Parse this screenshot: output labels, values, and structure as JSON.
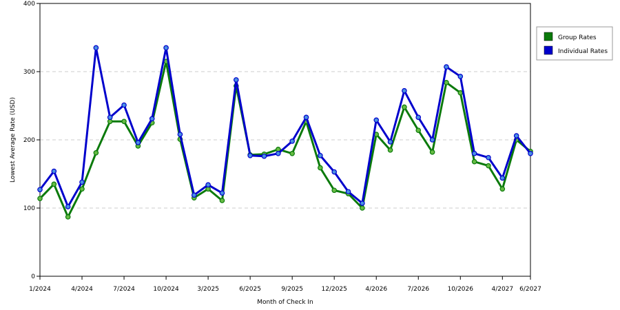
{
  "chart_data": {
    "type": "line",
    "xlabel": "Month of Check In",
    "ylabel": "Lowest Average Rate (USD)",
    "ylim": [
      0,
      400
    ],
    "yticks": [
      0,
      100,
      200,
      300,
      400
    ],
    "grid": "horizontal-dashed",
    "legend_position": "right",
    "x_tick_labels": [
      "1/2024",
      "4/2024",
      "7/2024",
      "10/2024",
      "3/2025",
      "6/2025",
      "9/2025",
      "12/2025",
      "4/2026",
      "7/2026",
      "10/2026",
      "4/2027",
      "6/2027"
    ],
    "x_tick_indices": [
      0,
      3,
      6,
      9,
      12,
      15,
      18,
      21,
      24,
      27,
      30,
      33,
      35
    ],
    "series": [
      {
        "name": "Group Rates",
        "color": "#0b7a0b",
        "marker_color": "#66bb44",
        "values": [
          114,
          135,
          87,
          128,
          181,
          227,
          227,
          191,
          225,
          315,
          201,
          115,
          128,
          111,
          279,
          178,
          179,
          186,
          180,
          227,
          159,
          126,
          121,
          100,
          208,
          185,
          248,
          214,
          182,
          284,
          269,
          168,
          162,
          128,
          200,
          183
        ]
      },
      {
        "name": "Individual Rates",
        "color": "#0000cc",
        "marker_color": "#4a90e2",
        "values": [
          127,
          154,
          102,
          138,
          335,
          233,
          251,
          196,
          231,
          335,
          208,
          119,
          134,
          122,
          288,
          177,
          176,
          180,
          198,
          233,
          177,
          153,
          124,
          107,
          229,
          197,
          272,
          233,
          200,
          307,
          293,
          180,
          174,
          144,
          206,
          180
        ]
      }
    ]
  }
}
